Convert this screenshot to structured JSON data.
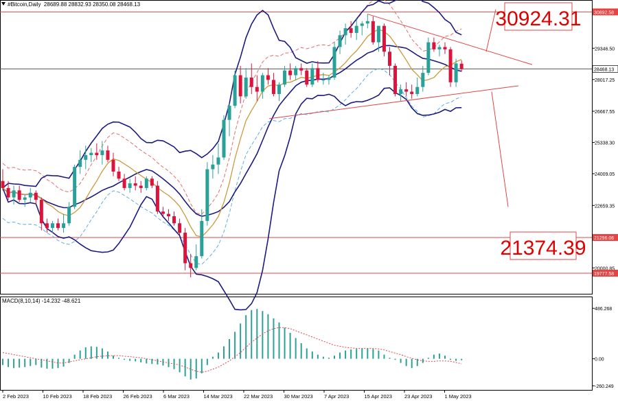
{
  "header": {
    "symbol": "#Bitcoin,Daily",
    "ohlc": "28689.88 28832.93 28350.08 28468.13"
  },
  "macd": {
    "label": "MACD(8,10,14) -14.232 -48.621",
    "axis_ticks": [
      "486.268",
      "0.00",
      "-260.249"
    ]
  },
  "levels": {
    "big_resistance": "30924.31",
    "big_support": "21374.39",
    "resistance_badge": "30892.58",
    "current_badge": "28468.13",
    "support_badge": "21296.06",
    "low_badge": "19777.58"
  },
  "colors": {
    "bull": "#2aa198",
    "bear": "#dc143c",
    "bollinger": "#1a1a80",
    "ma_orange": "#cc9a3a",
    "ma_red_dash": "#e86a6a",
    "ma_blue_dash": "#5aaee8",
    "level_line": "#e44444",
    "macd_hist": "#2aa198",
    "macd_signal": "#e44444"
  },
  "chart_data": {
    "type": "candlestick",
    "title": "#Bitcoin,Daily",
    "y_ticks": [
      "30892.58",
      "29346.50",
      "28468.13",
      "28017.25",
      "26667.55",
      "25338.30",
      "24009.05",
      "22659.35",
      "21296.06",
      "20000.85",
      "19777.58"
    ],
    "x_labels": [
      "2 Feb 2023",
      "10 Feb 2023",
      "18 Feb 2023",
      "26 Feb 2023",
      "6 Mar 2023",
      "14 Mar 2023",
      "22 Mar 2023",
      "30 Mar 2023",
      "7 Apr 2023",
      "15 Apr 2023",
      "23 Apr 2023",
      "1 May 2023"
    ],
    "ylim": [
      18900,
      31400
    ],
    "candles": [
      {
        "o": 23700,
        "h": 24200,
        "l": 23300,
        "c": 23400
      },
      {
        "o": 23400,
        "h": 23700,
        "l": 22900,
        "c": 23000
      },
      {
        "o": 23000,
        "h": 23500,
        "l": 22700,
        "c": 23300
      },
      {
        "o": 23300,
        "h": 23500,
        "l": 22800,
        "c": 22900
      },
      {
        "o": 22900,
        "h": 23100,
        "l": 22600,
        "c": 23000
      },
      {
        "o": 23000,
        "h": 23400,
        "l": 22800,
        "c": 23200
      },
      {
        "o": 23200,
        "h": 23300,
        "l": 22700,
        "c": 22900
      },
      {
        "o": 22900,
        "h": 23000,
        "l": 21600,
        "c": 21900
      },
      {
        "o": 21900,
        "h": 22100,
        "l": 21500,
        "c": 21700
      },
      {
        "o": 21700,
        "h": 22000,
        "l": 21500,
        "c": 21900
      },
      {
        "o": 21900,
        "h": 22100,
        "l": 21600,
        "c": 21700
      },
      {
        "o": 21700,
        "h": 22300,
        "l": 21500,
        "c": 21900
      },
      {
        "o": 21900,
        "h": 22800,
        "l": 21800,
        "c": 22600
      },
      {
        "o": 22600,
        "h": 24400,
        "l": 22500,
        "c": 24300
      },
      {
        "o": 24300,
        "h": 25000,
        "l": 24000,
        "c": 24600
      },
      {
        "o": 24600,
        "h": 25200,
        "l": 24200,
        "c": 24800
      },
      {
        "o": 24800,
        "h": 25100,
        "l": 24500,
        "c": 24900
      },
      {
        "o": 24900,
        "h": 25300,
        "l": 24600,
        "c": 24800
      },
      {
        "o": 24800,
        "h": 25400,
        "l": 24400,
        "c": 25000
      },
      {
        "o": 25000,
        "h": 25200,
        "l": 24500,
        "c": 24600
      },
      {
        "o": 24600,
        "h": 24900,
        "l": 23900,
        "c": 24100
      },
      {
        "o": 24100,
        "h": 24300,
        "l": 23700,
        "c": 23800
      },
      {
        "o": 23800,
        "h": 24000,
        "l": 23300,
        "c": 23400
      },
      {
        "o": 23400,
        "h": 23800,
        "l": 23200,
        "c": 23600
      },
      {
        "o": 23600,
        "h": 23900,
        "l": 23300,
        "c": 23500
      },
      {
        "o": 23500,
        "h": 23700,
        "l": 23200,
        "c": 23400
      },
      {
        "o": 23400,
        "h": 23900,
        "l": 23300,
        "c": 23800
      },
      {
        "o": 23800,
        "h": 23900,
        "l": 23400,
        "c": 23500
      },
      {
        "o": 23500,
        "h": 23700,
        "l": 22300,
        "c": 22400
      },
      {
        "o": 22400,
        "h": 22600,
        "l": 22200,
        "c": 22300
      },
      {
        "o": 22300,
        "h": 22500,
        "l": 22000,
        "c": 22200
      },
      {
        "o": 22200,
        "h": 22400,
        "l": 21800,
        "c": 21900
      },
      {
        "o": 21900,
        "h": 22100,
        "l": 21400,
        "c": 21500
      },
      {
        "o": 21500,
        "h": 21700,
        "l": 19900,
        "c": 20200
      },
      {
        "o": 20200,
        "h": 20600,
        "l": 19600,
        "c": 20000
      },
      {
        "o": 20000,
        "h": 21000,
        "l": 19900,
        "c": 20500
      },
      {
        "o": 20500,
        "h": 22500,
        "l": 20400,
        "c": 22000
      },
      {
        "o": 22000,
        "h": 24500,
        "l": 21800,
        "c": 24200
      },
      {
        "o": 24200,
        "h": 24800,
        "l": 23800,
        "c": 24400
      },
      {
        "o": 24400,
        "h": 25300,
        "l": 24000,
        "c": 24700
      },
      {
        "o": 24700,
        "h": 26500,
        "l": 24600,
        "c": 26300
      },
      {
        "o": 26300,
        "h": 27000,
        "l": 25600,
        "c": 26900
      },
      {
        "o": 26900,
        "h": 28400,
        "l": 26800,
        "c": 28200
      },
      {
        "o": 28200,
        "h": 28600,
        "l": 27000,
        "c": 27300
      },
      {
        "o": 27300,
        "h": 28500,
        "l": 27200,
        "c": 28100
      },
      {
        "o": 28100,
        "h": 28700,
        "l": 27400,
        "c": 27700
      },
      {
        "o": 27700,
        "h": 28200,
        "l": 27100,
        "c": 27500
      },
      {
        "o": 27500,
        "h": 28300,
        "l": 27200,
        "c": 28200
      },
      {
        "o": 28200,
        "h": 28500,
        "l": 27800,
        "c": 28000
      },
      {
        "o": 28000,
        "h": 28300,
        "l": 27300,
        "c": 27400
      },
      {
        "o": 27400,
        "h": 27900,
        "l": 27100,
        "c": 27800
      },
      {
        "o": 27800,
        "h": 28600,
        "l": 27700,
        "c": 28400
      },
      {
        "o": 28400,
        "h": 28700,
        "l": 28000,
        "c": 28200
      },
      {
        "o": 28200,
        "h": 28600,
        "l": 28000,
        "c": 28500
      },
      {
        "o": 28500,
        "h": 28700,
        "l": 28200,
        "c": 28400
      },
      {
        "o": 28400,
        "h": 28500,
        "l": 27700,
        "c": 27800
      },
      {
        "o": 27800,
        "h": 28700,
        "l": 27700,
        "c": 28500
      },
      {
        "o": 28500,
        "h": 28800,
        "l": 27900,
        "c": 28000
      },
      {
        "o": 28000,
        "h": 28300,
        "l": 27800,
        "c": 28000
      },
      {
        "o": 28000,
        "h": 28200,
        "l": 27800,
        "c": 28100
      },
      {
        "o": 28100,
        "h": 29600,
        "l": 28000,
        "c": 29400
      },
      {
        "o": 29400,
        "h": 30100,
        "l": 29100,
        "c": 29900
      },
      {
        "o": 29900,
        "h": 30400,
        "l": 29500,
        "c": 30200
      },
      {
        "o": 30200,
        "h": 30500,
        "l": 29800,
        "c": 30000
      },
      {
        "o": 30000,
        "h": 30600,
        "l": 29700,
        "c": 30300
      },
      {
        "o": 30300,
        "h": 30500,
        "l": 29900,
        "c": 30400
      },
      {
        "o": 30400,
        "h": 30800,
        "l": 30200,
        "c": 30500
      },
      {
        "o": 30500,
        "h": 30700,
        "l": 29500,
        "c": 29600
      },
      {
        "o": 29600,
        "h": 30300,
        "l": 29200,
        "c": 30300
      },
      {
        "o": 30300,
        "h": 30400,
        "l": 29000,
        "c": 29200
      },
      {
        "o": 29200,
        "h": 29400,
        "l": 28200,
        "c": 28600
      },
      {
        "o": 28600,
        "h": 28700,
        "l": 27300,
        "c": 27400
      },
      {
        "o": 27400,
        "h": 27800,
        "l": 27100,
        "c": 27600
      },
      {
        "o": 27600,
        "h": 27900,
        "l": 27300,
        "c": 27500
      },
      {
        "o": 27500,
        "h": 27800,
        "l": 27200,
        "c": 27400
      },
      {
        "o": 27400,
        "h": 28100,
        "l": 27300,
        "c": 27700
      },
      {
        "o": 27700,
        "h": 28600,
        "l": 27500,
        "c": 28300
      },
      {
        "o": 28300,
        "h": 29800,
        "l": 28200,
        "c": 29600
      },
      {
        "o": 29600,
        "h": 29800,
        "l": 29200,
        "c": 29300
      },
      {
        "o": 29300,
        "h": 29500,
        "l": 29000,
        "c": 29400
      },
      {
        "o": 29400,
        "h": 29600,
        "l": 29100,
        "c": 29300
      },
      {
        "o": 29300,
        "h": 29400,
        "l": 27700,
        "c": 27900
      },
      {
        "o": 27900,
        "h": 28900,
        "l": 27700,
        "c": 28700
      },
      {
        "o": 28689.88,
        "h": 28832.93,
        "l": 28350.08,
        "c": 28468.13
      }
    ],
    "macd_hist": [
      -60,
      -80,
      -90,
      -85,
      -80,
      -70,
      -60,
      -85,
      -95,
      -95,
      -90,
      -75,
      -40,
      40,
      80,
      110,
      120,
      115,
      100,
      70,
      30,
      10,
      -10,
      -20,
      -25,
      -35,
      -45,
      -50,
      -55,
      -65,
      -80,
      -100,
      -130,
      -170,
      -200,
      -190,
      -140,
      -60,
      20,
      60,
      120,
      190,
      260,
      340,
      420,
      470,
      480,
      460,
      430,
      390,
      350,
      300,
      250,
      200,
      150,
      100,
      70,
      40,
      20,
      10,
      30,
      60,
      80,
      90,
      95,
      100,
      100,
      95,
      80,
      40,
      10,
      -10,
      -40,
      -70,
      -90,
      -70,
      -40,
      10,
      40,
      50,
      30,
      -10,
      -20,
      -14
    ],
    "macd_signal": [
      60,
      50,
      40,
      30,
      20,
      10,
      0,
      -10,
      -20,
      -30,
      -40,
      -40,
      -30,
      -20,
      -10,
      0,
      10,
      20,
      25,
      30,
      30,
      30,
      25,
      20,
      15,
      10,
      0,
      -10,
      -20,
      -30,
      -40,
      -50,
      -60,
      -80,
      -100,
      -120,
      -130,
      -120,
      -100,
      -80,
      -50,
      -20,
      20,
      60,
      110,
      160,
      200,
      240,
      270,
      290,
      300,
      300,
      290,
      270,
      250,
      230,
      210,
      190,
      170,
      150,
      130,
      120,
      110,
      105,
      100,
      100,
      100,
      100,
      95,
      85,
      70,
      55,
      40,
      20,
      5,
      -10,
      -20,
      -25,
      -25,
      -20,
      -20,
      -25,
      -35,
      -48.621
    ],
    "macd_ylim": [
      -300,
      600
    ]
  }
}
